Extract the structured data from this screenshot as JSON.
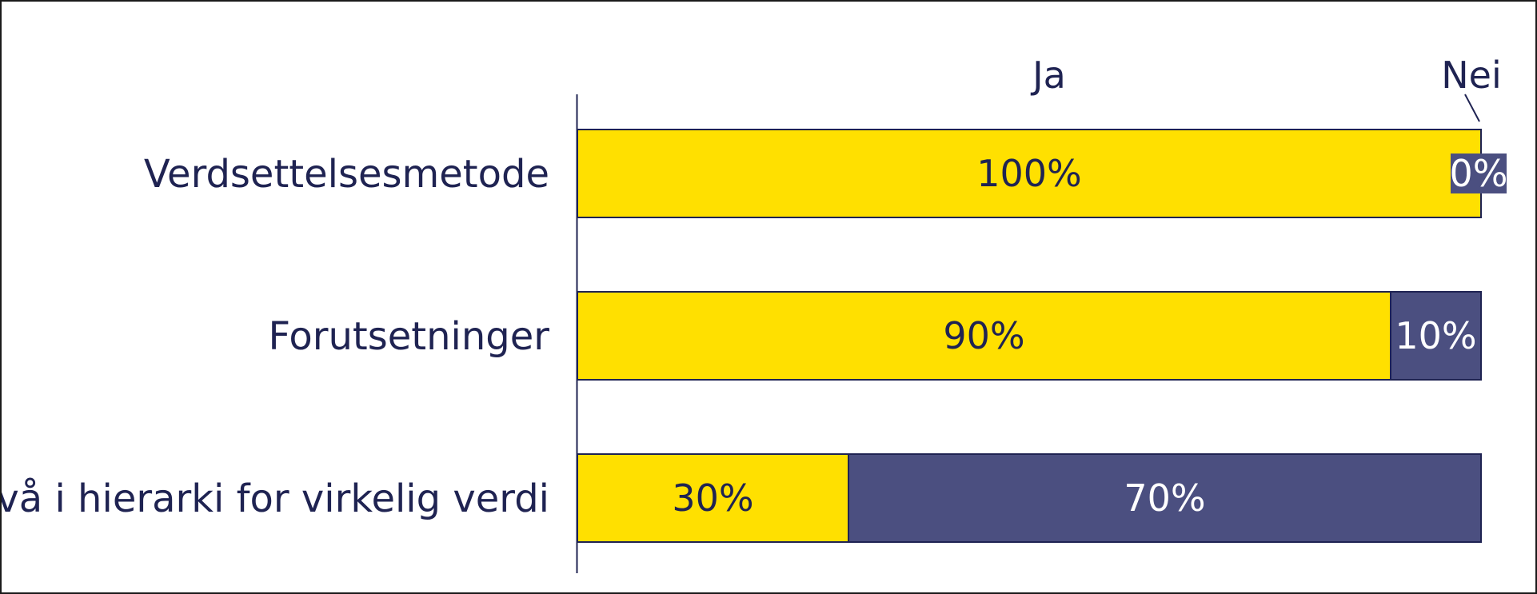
{
  "chart_data": {
    "type": "bar",
    "orientation": "horizontal",
    "stacked": true,
    "normalized": true,
    "categories": [
      "Verdsettelsesmetode",
      "Forutsetninger",
      "Nivå i hierarki for virkelig verdi"
    ],
    "series": [
      {
        "name": "Ja",
        "values": [
          100,
          90,
          30
        ],
        "labels": [
          "100%",
          "90%",
          "30%"
        ],
        "color": "#ffe000",
        "label_color": "#1f2352"
      },
      {
        "name": "Nei",
        "values": [
          0,
          10,
          70
        ],
        "labels": [
          "0%",
          "10%",
          "70%"
        ],
        "color": "#4b4f80",
        "label_color": "#ffffff"
      }
    ],
    "xlim": [
      0,
      100
    ],
    "grid": false,
    "legend": "top"
  }
}
